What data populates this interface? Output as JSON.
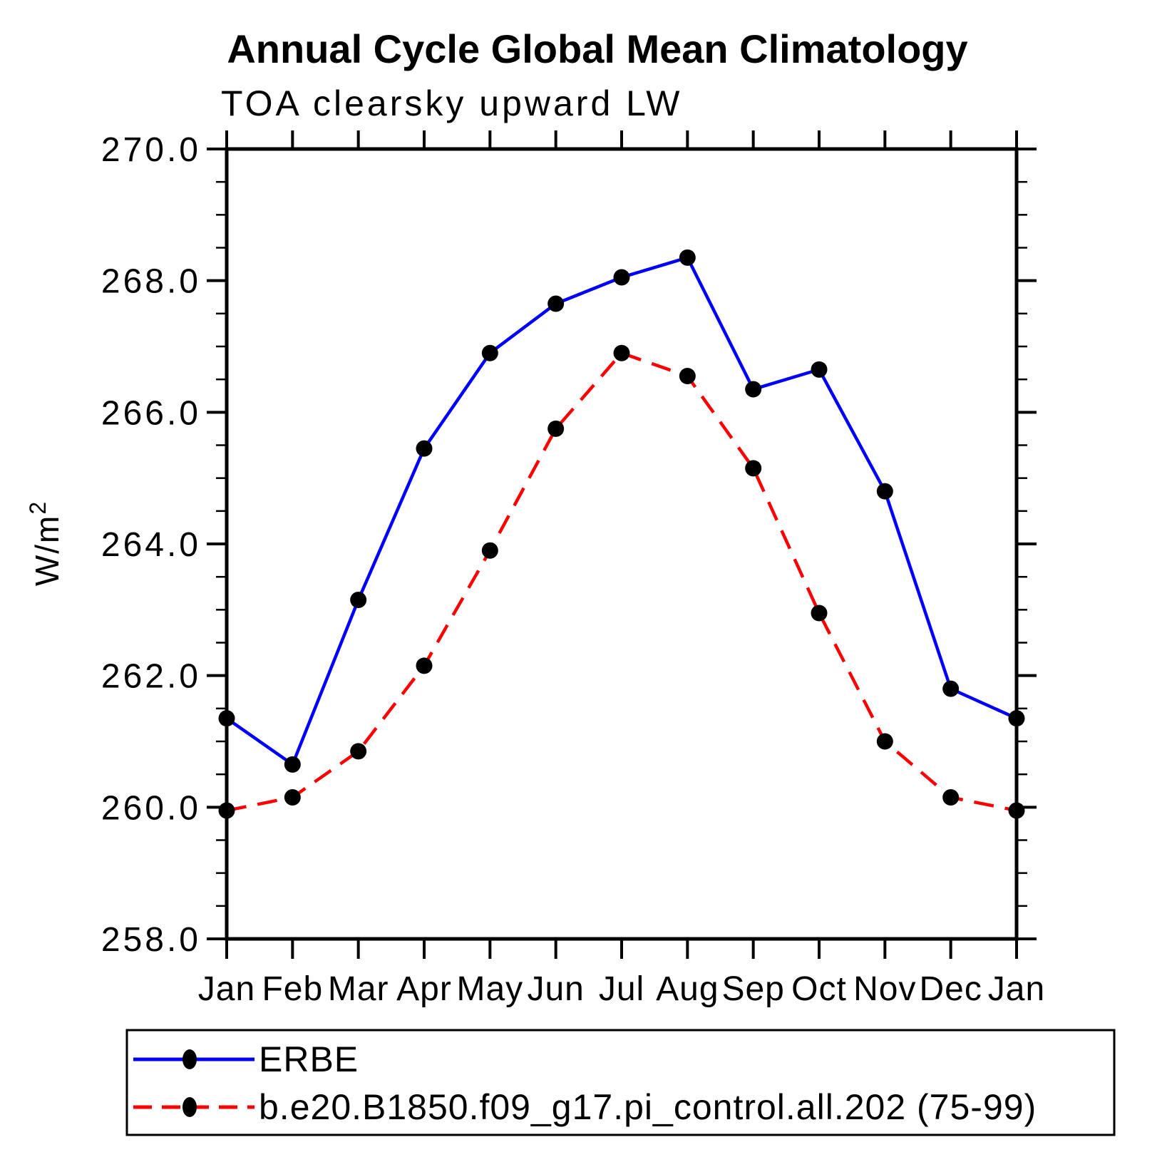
{
  "page": {
    "background": "#ffffff",
    "axis_color": "#000000",
    "text_color": "#000000"
  },
  "chart_data": {
    "type": "line",
    "title": "Annual Cycle Global Mean Climatology",
    "subtitle": "TOA clearsky upward LW",
    "ylabel": "W/m²",
    "xlabel": "",
    "categories": [
      "Jan",
      "Feb",
      "Mar",
      "Apr",
      "May",
      "Jun",
      "Jul",
      "Aug",
      "Sep",
      "Oct",
      "Nov",
      "Dec",
      "Jan"
    ],
    "y_axis": {
      "min": 258.0,
      "max": 270.0,
      "major_step": 2.0,
      "minor_step": 0.5,
      "tick_labels": [
        "270.0",
        "268.0",
        "266.0",
        "264.0",
        "262.0",
        "260.0",
        "258.0"
      ]
    },
    "grid": false,
    "legend_position": "bottom",
    "marker_color": "#000000",
    "series": [
      {
        "name": "ERBE",
        "color": "#0000ff",
        "style": "solid",
        "marker": "filled-circle",
        "values": [
          261.35,
          260.65,
          263.15,
          265.45,
          266.9,
          267.65,
          268.05,
          268.35,
          266.35,
          266.65,
          264.8,
          261.8,
          261.35
        ]
      },
      {
        "name": "b.e20.B1850.f09_g17.pi_control.all.202 (75-99)",
        "color": "#ff0000",
        "style": "dashed",
        "marker": "filled-circle",
        "values": [
          259.95,
          260.15,
          260.85,
          262.15,
          263.9,
          265.75,
          266.9,
          266.55,
          265.15,
          262.95,
          261.0,
          260.15,
          259.95
        ]
      }
    ]
  }
}
